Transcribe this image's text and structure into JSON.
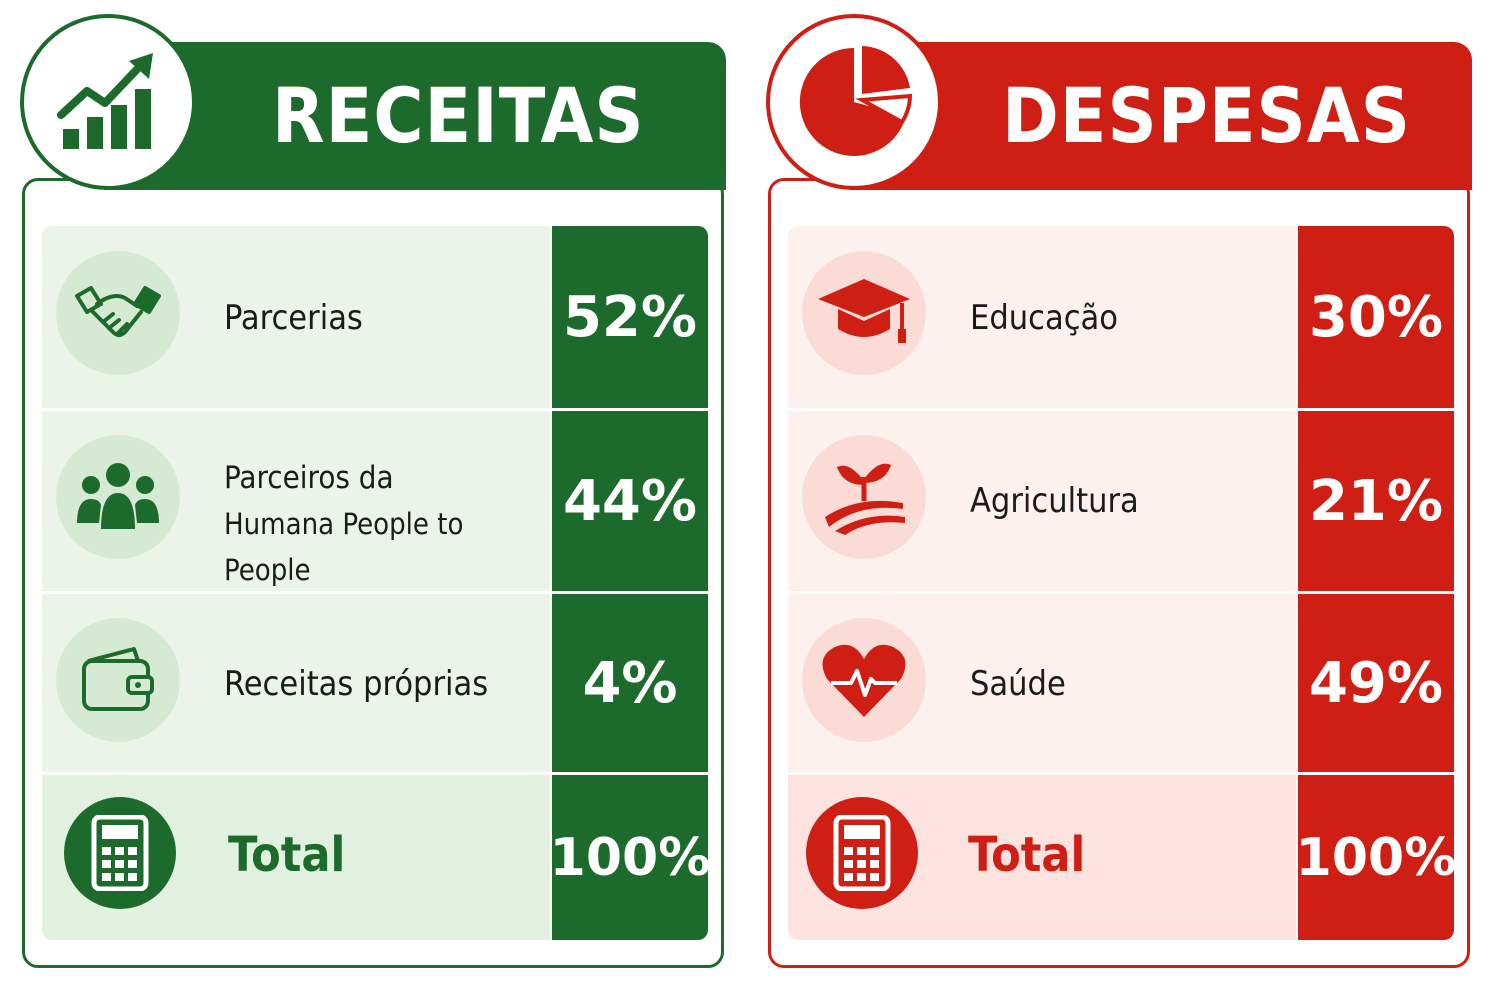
{
  "receitas": {
    "title": "RECEITAS",
    "color": "#1d6b2c",
    "rows": [
      {
        "label": "Parcerias",
        "value": "52%",
        "icon": "handshake-icon"
      },
      {
        "label_line1": "Parceiros da",
        "label_line2": "Humana People to People",
        "value": "44%",
        "icon": "people-group-icon"
      },
      {
        "label": "Receitas próprias",
        "value": "4%",
        "icon": "wallet-icon"
      }
    ],
    "total": {
      "label": "Total",
      "value": "100%",
      "icon": "calculator-icon"
    }
  },
  "despesas": {
    "title": "DESPESAS",
    "color": "#cf1f14",
    "rows": [
      {
        "label": "Educação",
        "value": "30%",
        "icon": "graduation-cap-icon"
      },
      {
        "label": "Agricultura",
        "value": "21%",
        "icon": "sprout-field-icon"
      },
      {
        "label": "Saúde",
        "value": "49%",
        "icon": "heart-pulse-icon"
      }
    ],
    "total": {
      "label": "Total",
      "value": "100%",
      "icon": "calculator-icon"
    }
  }
}
